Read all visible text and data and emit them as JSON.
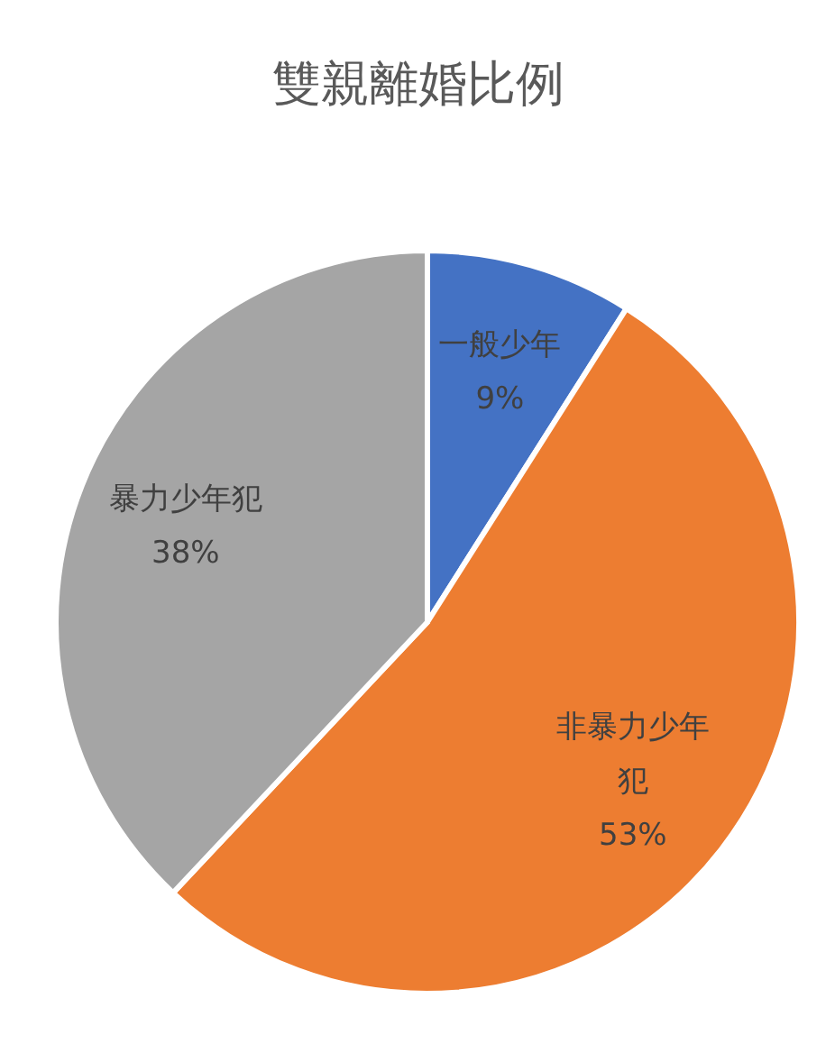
{
  "chart_data": {
    "type": "pie",
    "title": "雙親離婚比例",
    "categories": [
      "一般少年",
      "非暴力少年犯",
      "暴力少年犯"
    ],
    "values": [
      9,
      53,
      38
    ],
    "value_labels": [
      "9%",
      "53%",
      "38%"
    ],
    "colors": [
      "#4472c4",
      "#ed7d31",
      "#a5a5a5"
    ],
    "legend": false
  }
}
